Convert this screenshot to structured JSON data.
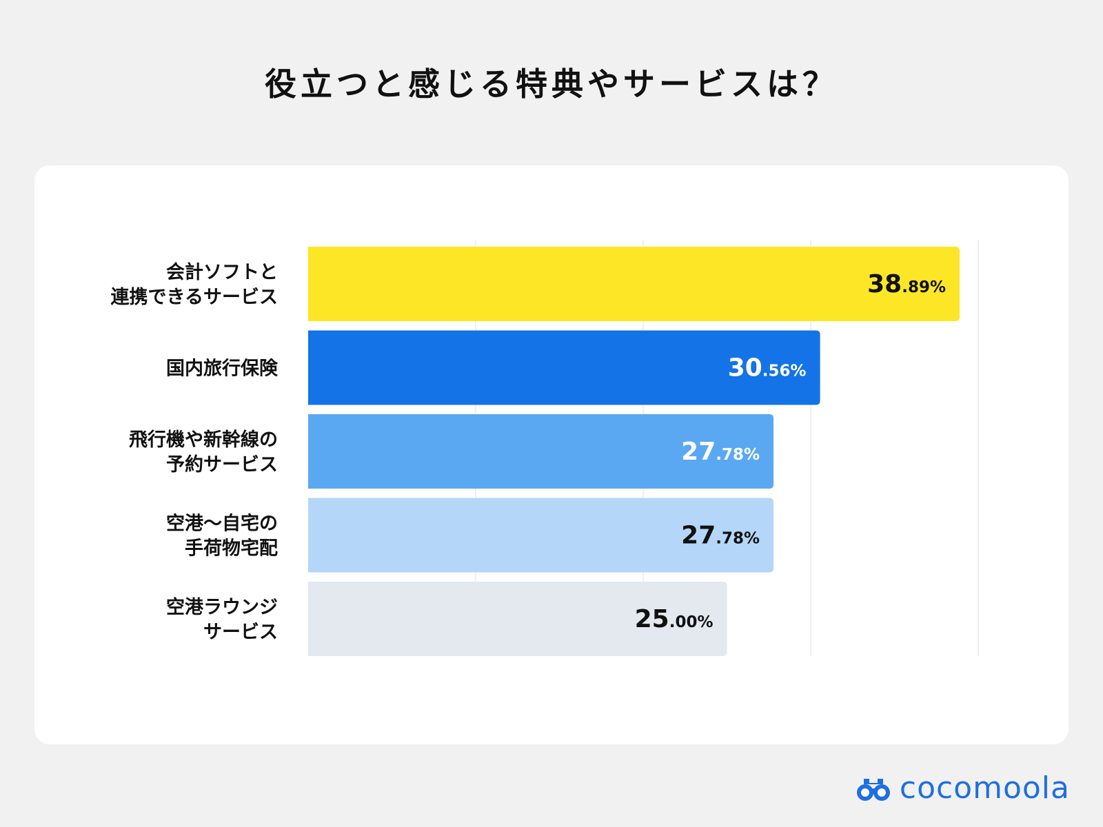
{
  "title": "役立つと感じる特典やサービスは？",
  "logo": {
    "text": "cocomoola",
    "icon": "binoculars-icon",
    "color": "#1f6fe0"
  },
  "chart_data": {
    "type": "bar",
    "orientation": "horizontal",
    "title": "役立つと感じる特典やサービスは？",
    "xlim": [
      0,
      50
    ],
    "grid": true,
    "unit": "%",
    "categories": [
      [
        "会計ソフトと",
        "連携できるサービス"
      ],
      [
        "国内旅行保険"
      ],
      [
        "飛行機や新幹線の",
        "予約サービス"
      ],
      [
        "空港〜自宅の",
        "手荷物宅配"
      ],
      [
        "空港ラウンジ",
        "サービス"
      ]
    ],
    "values": [
      38.89,
      30.56,
      27.78,
      27.78,
      25.0
    ],
    "value_labels": [
      {
        "int": "38",
        "dec": ".89%"
      },
      {
        "int": "30",
        "dec": ".56%"
      },
      {
        "int": "27",
        "dec": ".78%"
      },
      {
        "int": "27",
        "dec": ".78%"
      },
      {
        "int": "25",
        "dec": ".00%"
      }
    ],
    "bar_colors": [
      "#fde626",
      "#1473e6",
      "#5aa8f2",
      "#b4d6f8",
      "#e4e8ef"
    ],
    "label_colors": [
      "#111111",
      "#ffffff",
      "#ffffff",
      "#111111",
      "#111111"
    ]
  }
}
